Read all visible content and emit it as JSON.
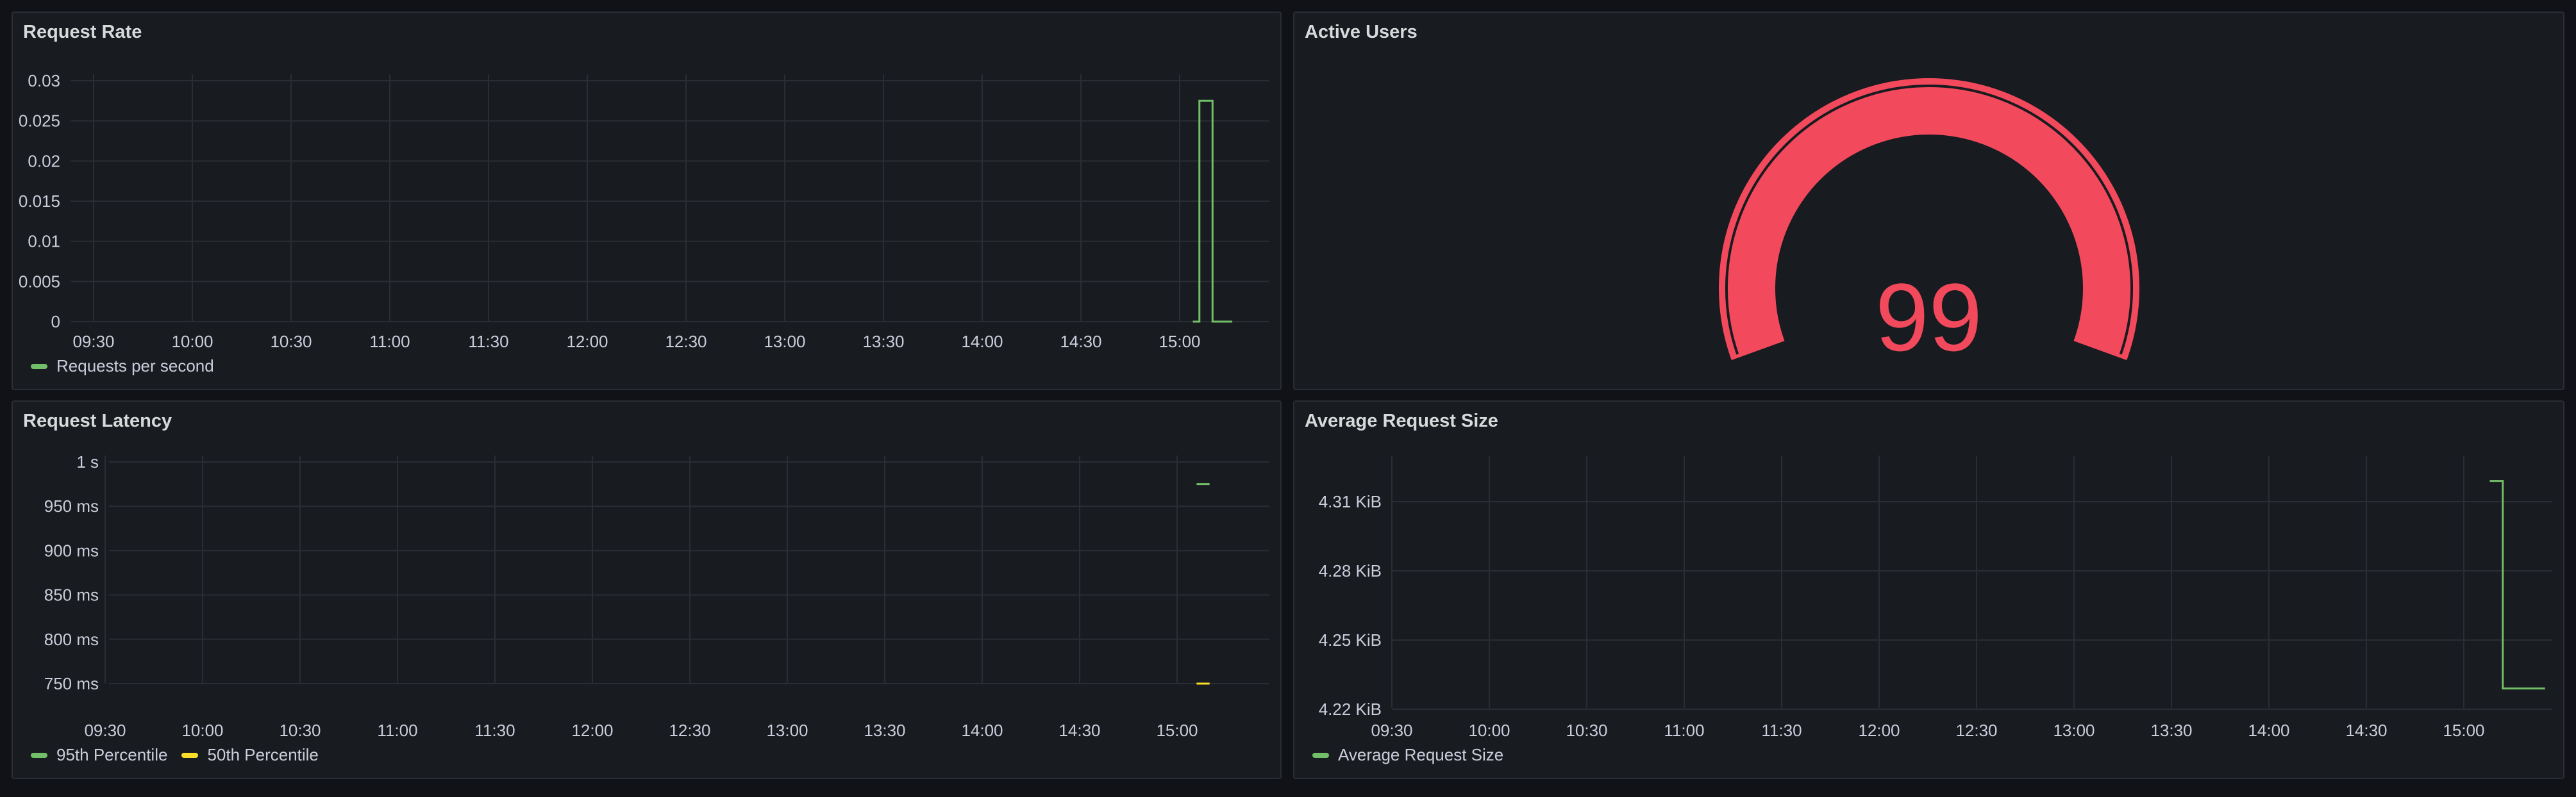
{
  "panels": {
    "request_rate": {
      "title": "Request Rate",
      "legend": [
        {
          "label": "Requests per second",
          "color": "#73bf69"
        }
      ]
    },
    "active_users": {
      "title": "Active Users",
      "value": "99",
      "color": "#f2495c"
    },
    "request_latency": {
      "title": "Request Latency",
      "legend": [
        {
          "label": "95th Percentile",
          "color": "#73bf69"
        },
        {
          "label": "50th Percentile",
          "color": "#fade2a"
        }
      ]
    },
    "avg_request_size": {
      "title": "Average Request Size",
      "legend": [
        {
          "label": "Average Request Size",
          "color": "#73bf69"
        }
      ]
    }
  },
  "chart_data": [
    {
      "type": "line",
      "panel": "request_rate",
      "x_ticks": [
        "09:30",
        "10:00",
        "10:30",
        "11:00",
        "11:30",
        "12:00",
        "12:30",
        "13:00",
        "13:30",
        "14:00",
        "14:30",
        "15:00"
      ],
      "y_ticks": [
        "0.03",
        "0.025",
        "0.02",
        "0.015",
        "0.01",
        "0.005",
        "0"
      ],
      "ylim": [
        0,
        0.03
      ],
      "series": [
        {
          "name": "Requests per second",
          "color": "#73bf69",
          "x": [
            "15:04",
            "15:06",
            "15:06",
            "15:10",
            "15:10",
            "15:16"
          ],
          "y": [
            0,
            0,
            0.0275,
            0.0275,
            0,
            0
          ]
        }
      ]
    },
    {
      "type": "gauge",
      "panel": "active_users",
      "value": 99,
      "fraction": 1.0
    },
    {
      "type": "line",
      "panel": "request_latency",
      "x_ticks": [
        "09:30",
        "10:00",
        "10:30",
        "11:00",
        "11:30",
        "12:00",
        "12:30",
        "13:00",
        "13:30",
        "14:00",
        "14:30",
        "15:00"
      ],
      "y_ticks": [
        "1 s",
        "950 ms",
        "900 ms",
        "850 ms",
        "800 ms",
        "750 ms"
      ],
      "ylim": [
        725,
        1000
      ],
      "series": [
        {
          "name": "95th Percentile",
          "color": "#73bf69",
          "x": [
            "15:06",
            "15:10"
          ],
          "y": [
            975,
            975
          ]
        },
        {
          "name": "50th Percentile",
          "color": "#fade2a",
          "x": [
            "15:06",
            "15:10"
          ],
          "y": [
            750,
            750
          ]
        }
      ]
    },
    {
      "type": "line",
      "panel": "avg_request_size",
      "x_ticks": [
        "09:30",
        "10:00",
        "10:30",
        "11:00",
        "11:30",
        "12:00",
        "12:30",
        "13:00",
        "13:30",
        "14:00",
        "14:30",
        "15:00"
      ],
      "y_ticks": [
        "4.31 KiB",
        "4.28 KiB",
        "4.25 KiB",
        "4.22 KiB"
      ],
      "y_tick_values": [
        4.31,
        4.28,
        4.25,
        4.22
      ],
      "series": [
        {
          "name": "Average Request Size",
          "color": "#73bf69",
          "x": [
            "15:08",
            "15:12",
            "15:12",
            "15:25"
          ],
          "y": [
            4.319,
            4.319,
            4.229,
            4.229
          ]
        }
      ]
    }
  ]
}
